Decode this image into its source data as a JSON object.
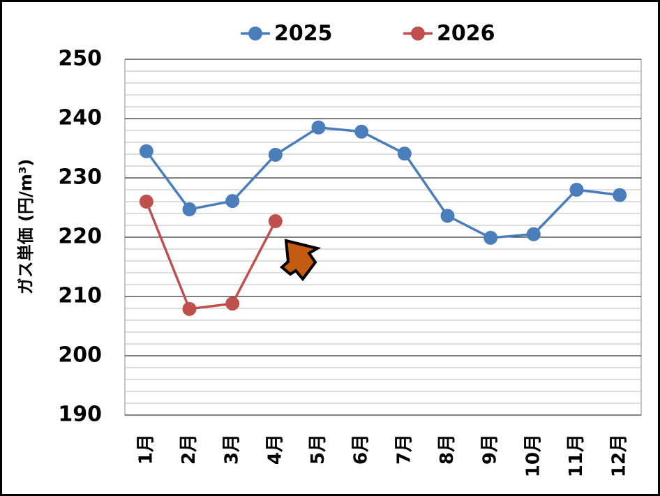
{
  "chart_data": {
    "type": "line",
    "y_label": "ガス単価 (円/m³)",
    "categories": [
      "1月",
      "2月",
      "3月",
      "4月",
      "5月",
      "6月",
      "7月",
      "8月",
      "9月",
      "10月",
      "11月",
      "12月"
    ],
    "series": [
      {
        "name": "2025",
        "color": "#4a7ebb",
        "values": [
          234.5,
          224.7,
          226.1,
          233.9,
          238.5,
          237.8,
          234.1,
          223.6,
          219.9,
          220.5,
          228.0,
          227.1
        ]
      },
      {
        "name": "2026",
        "color": "#c0504d",
        "values": [
          226.0,
          207.9,
          208.8,
          222.7,
          null,
          null,
          null,
          null,
          null,
          null,
          null,
          null
        ]
      }
    ],
    "ylim": [
      190,
      250
    ],
    "yticks": [
      190,
      200,
      210,
      220,
      230,
      240,
      250
    ],
    "grid": true,
    "legend": "top"
  }
}
